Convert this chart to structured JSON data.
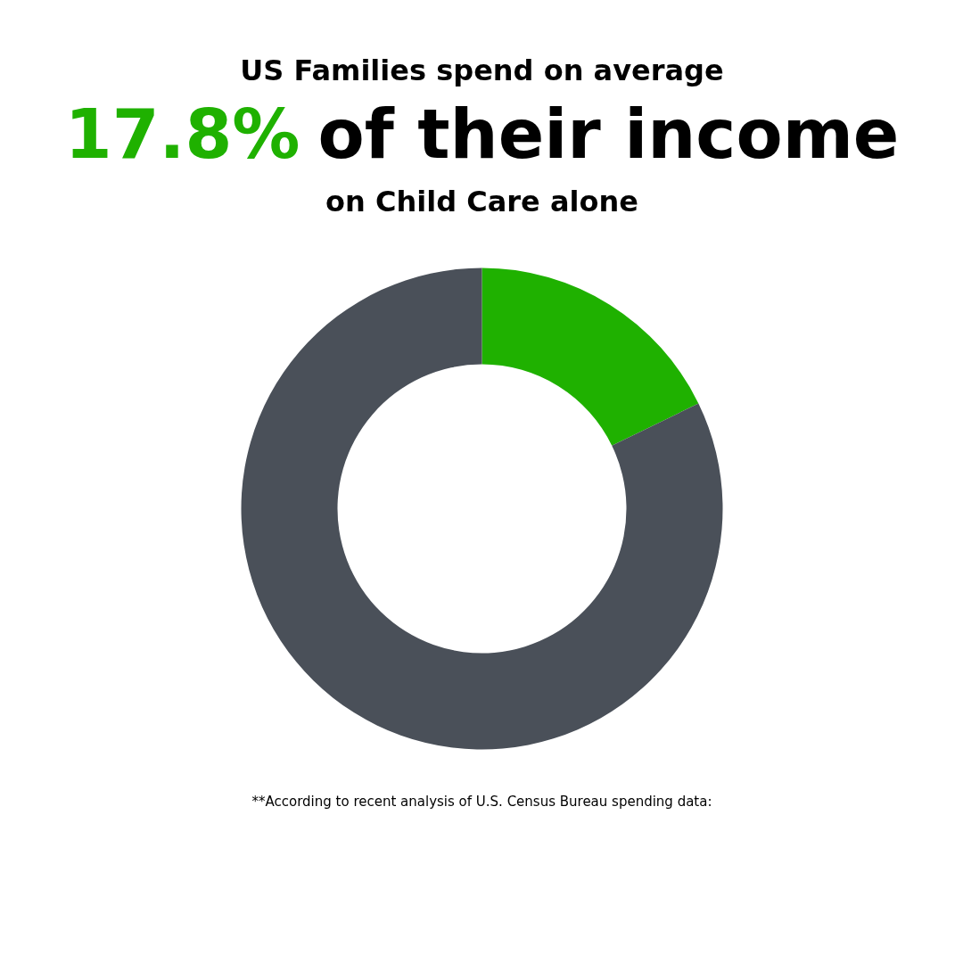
{
  "chart_data": {
    "type": "donut",
    "title": "US Families spend on average\n17.8% of their income\non Child Care alone",
    "categories": [
      null,
      null
    ],
    "values": [
      17.8,
      82.2
    ],
    "colors": [
      "#1fb100",
      "#4a5059"
    ],
    "annotations": [
      "**According to recent analysis of U.S. Census Bureau spending data:"
    ]
  }
}
